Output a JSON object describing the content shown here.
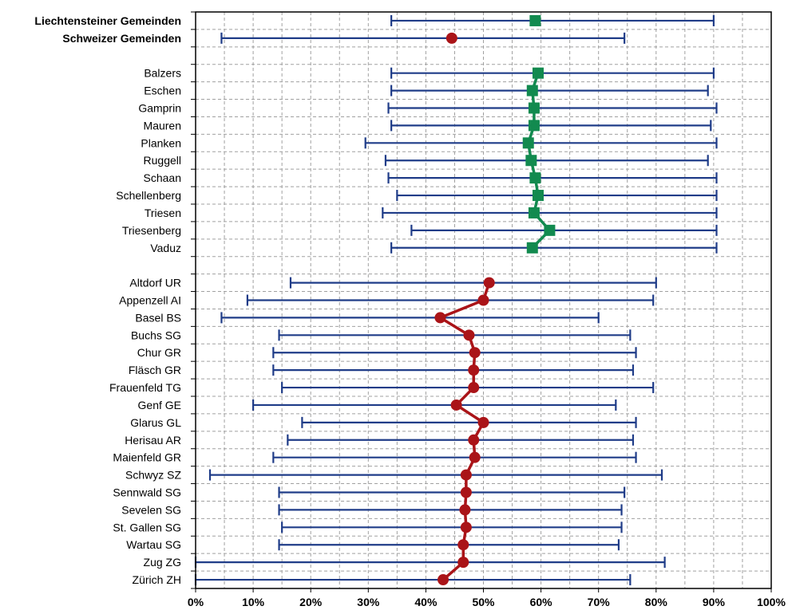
{
  "chart_data": {
    "type": "range-dot",
    "xlim": [
      0,
      100
    ],
    "x_ticks": [
      "0%",
      "10%",
      "20%",
      "30%",
      "40%",
      "50%",
      "60%",
      "70%",
      "80%",
      "90%",
      "100%"
    ],
    "grid": true,
    "colors": {
      "range": "#1f3c88",
      "liechtenstein": "#128a4f",
      "schweiz": "#aa1418",
      "grid": "#a0a0a0"
    },
    "summary": [
      {
        "name": "Liechtensteiner Gemeinden",
        "min": 34,
        "max": 90,
        "value": 59,
        "group": "liechtenstein"
      },
      {
        "name": "Schweizer Gemeinden",
        "min": 4.5,
        "max": 74.5,
        "value": 44.5,
        "group": "schweiz"
      }
    ],
    "groups": [
      {
        "id": "liechtenstein",
        "items": [
          {
            "name": "Balzers",
            "min": 34,
            "max": 90,
            "value": 59.5
          },
          {
            "name": "Eschen",
            "min": 34,
            "max": 89,
            "value": 58.5
          },
          {
            "name": "Gamprin",
            "min": 33.5,
            "max": 90.5,
            "value": 58.8
          },
          {
            "name": "Mauren",
            "min": 34,
            "max": 89.5,
            "value": 58.8
          },
          {
            "name": "Planken",
            "min": 29.5,
            "max": 90.5,
            "value": 57.8
          },
          {
            "name": "Ruggell",
            "min": 33,
            "max": 89,
            "value": 58.3
          },
          {
            "name": "Schaan",
            "min": 33.5,
            "max": 90.5,
            "value": 59
          },
          {
            "name": "Schellenberg",
            "min": 35,
            "max": 90.5,
            "value": 59.5
          },
          {
            "name": "Triesen",
            "min": 32.5,
            "max": 90.5,
            "value": 58.8
          },
          {
            "name": "Triesenberg",
            "min": 37.5,
            "max": 90.5,
            "value": 61.5
          },
          {
            "name": "Vaduz",
            "min": 34,
            "max": 90.5,
            "value": 58.5
          }
        ]
      },
      {
        "id": "schweiz",
        "items": [
          {
            "name": "Altdorf UR",
            "min": 16.5,
            "max": 80,
            "value": 51
          },
          {
            "name": "Appenzell AI",
            "min": 9,
            "max": 79.5,
            "value": 50
          },
          {
            "name": "Basel BS",
            "min": 4.5,
            "max": 70,
            "value": 42.5
          },
          {
            "name": "Buchs SG",
            "min": 14.5,
            "max": 75.5,
            "value": 47.5
          },
          {
            "name": "Chur GR",
            "min": 13.5,
            "max": 76.5,
            "value": 48.5
          },
          {
            "name": "Fläsch GR",
            "min": 13.5,
            "max": 76,
            "value": 48.3
          },
          {
            "name": "Frauenfeld TG",
            "min": 15,
            "max": 79.5,
            "value": 48.3
          },
          {
            "name": "Genf GE",
            "min": 10,
            "max": 73,
            "value": 45.3
          },
          {
            "name": "Glarus GL",
            "min": 18.5,
            "max": 76.5,
            "value": 50
          },
          {
            "name": "Herisau AR",
            "min": 16,
            "max": 76,
            "value": 48.3
          },
          {
            "name": "Maienfeld GR",
            "min": 13.5,
            "max": 76.5,
            "value": 48.5
          },
          {
            "name": "Schwyz SZ",
            "min": 2.5,
            "max": 81,
            "value": 47
          },
          {
            "name": "Sennwald SG",
            "min": 14.5,
            "max": 74.5,
            "value": 47
          },
          {
            "name": "Sevelen SG",
            "min": 14.5,
            "max": 74,
            "value": 46.8
          },
          {
            "name": "St. Gallen SG",
            "min": 15,
            "max": 74,
            "value": 47
          },
          {
            "name": "Wartau SG",
            "min": 14.5,
            "max": 73.5,
            "value": 46.5
          },
          {
            "name": "Zug ZG",
            "min": 0,
            "max": 81.5,
            "value": 46.5
          },
          {
            "name": "Zürich ZH",
            "min": 0,
            "max": 75.5,
            "value": 43
          }
        ]
      }
    ]
  }
}
